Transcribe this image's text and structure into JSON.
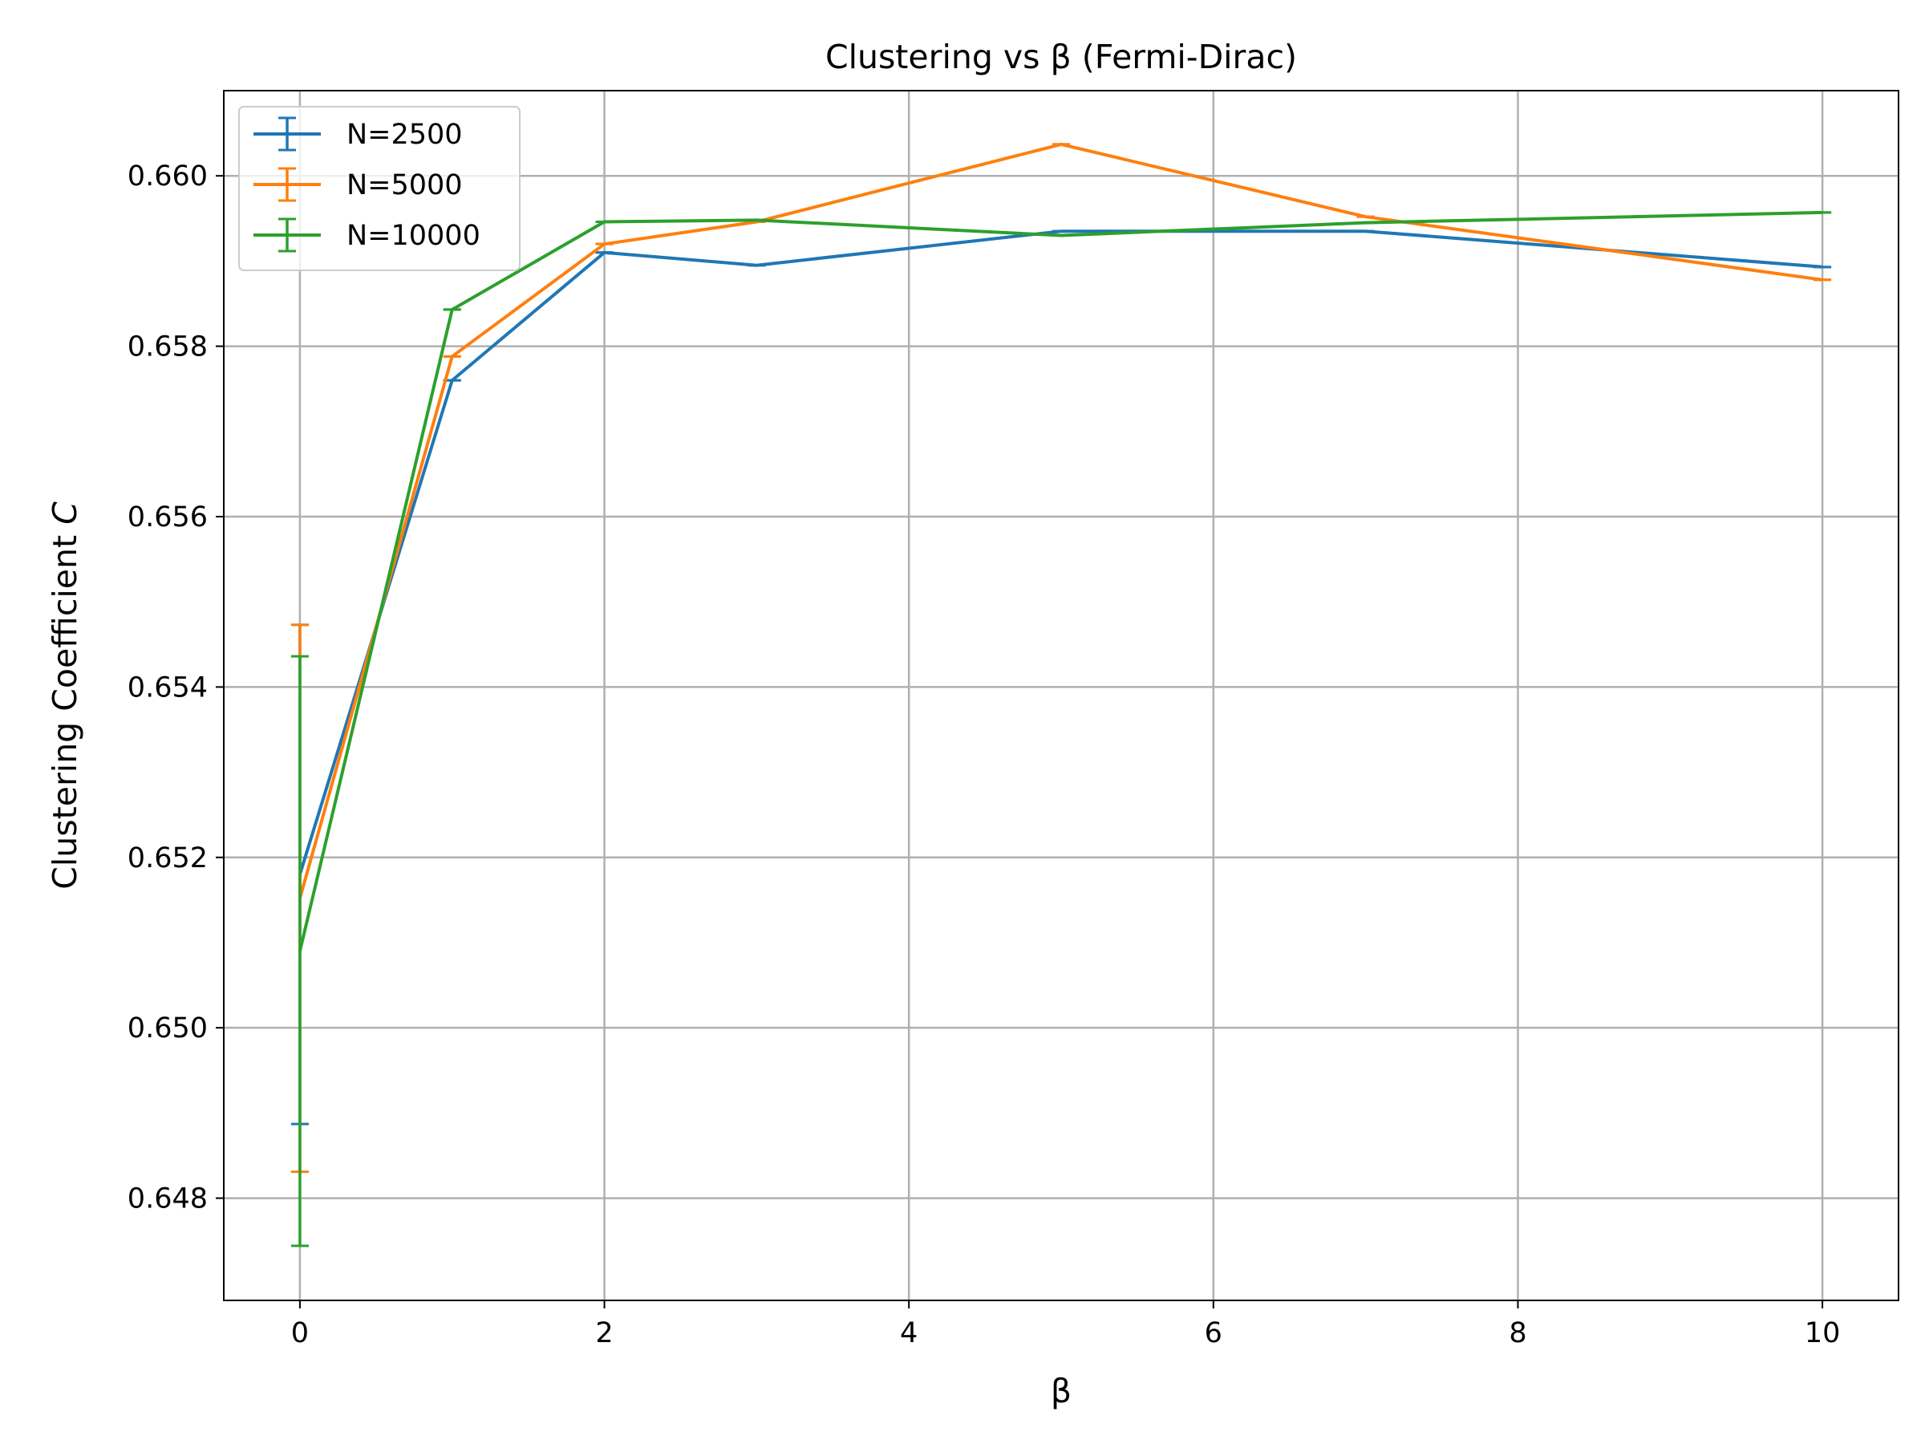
{
  "chart_data": {
    "type": "line",
    "title": "Clustering vs β (Fermi-Dirac)",
    "xlabel": "β",
    "ylabel": "Clustering Coefficient",
    "ylabel_symbol": "C",
    "xlim": [
      -0.5,
      10.5
    ],
    "ylim": [
      0.6468,
      0.661
    ],
    "xticks": [
      0,
      2,
      4,
      6,
      8,
      10
    ],
    "xtick_labels": [
      "0",
      "2",
      "4",
      "6",
      "8",
      "10"
    ],
    "yticks": [
      0.648,
      0.65,
      0.652,
      0.654,
      0.656,
      0.658,
      0.66
    ],
    "ytick_labels": [
      "0.648",
      "0.650",
      "0.652",
      "0.654",
      "0.656",
      "0.658",
      "0.660"
    ],
    "grid": true,
    "legend": "upper-left",
    "error_bars": true,
    "series": [
      {
        "name": "N=2500",
        "color": "#1f77b4",
        "points": [
          {
            "x": 0,
            "y": 0.6518,
            "err": 0.00293
          },
          {
            "x": 1,
            "y": 0.6576,
            "err": 0.0
          },
          {
            "x": 2,
            "y": 0.6591,
            "err": 0.0
          },
          {
            "x": 3,
            "y": 0.65895,
            "err": 0.0
          },
          {
            "x": 5,
            "y": 0.65935,
            "err": 0.0
          },
          {
            "x": 7,
            "y": 0.65935,
            "err": 0.0
          },
          {
            "x": 10,
            "y": 0.65893,
            "err": 0.0
          }
        ]
      },
      {
        "name": "N=5000",
        "color": "#ff7f0e",
        "points": [
          {
            "x": 0,
            "y": 0.65152,
            "err": 0.00321
          },
          {
            "x": 1,
            "y": 0.65788,
            "err": 0.0
          },
          {
            "x": 2,
            "y": 0.6592,
            "err": 0.0
          },
          {
            "x": 3,
            "y": 0.65946,
            "err": 0.0
          },
          {
            "x": 5,
            "y": 0.66037,
            "err": 0.0
          },
          {
            "x": 7,
            "y": 0.65952,
            "err": 0.0
          },
          {
            "x": 10,
            "y": 0.65878,
            "err": 0.0
          }
        ]
      },
      {
        "name": "N=10000",
        "color": "#2ca02c",
        "points": [
          {
            "x": 0,
            "y": 0.6509,
            "err": 0.00346
          },
          {
            "x": 1,
            "y": 0.65843,
            "err": 0.0
          },
          {
            "x": 2,
            "y": 0.65946,
            "err": 0.0
          },
          {
            "x": 3,
            "y": 0.65948,
            "err": 0.0
          },
          {
            "x": 5,
            "y": 0.6593,
            "err": 0.0
          },
          {
            "x": 7,
            "y": 0.65945,
            "err": 0.0
          },
          {
            "x": 10,
            "y": 0.65957,
            "err": 0.0
          }
        ]
      }
    ]
  }
}
